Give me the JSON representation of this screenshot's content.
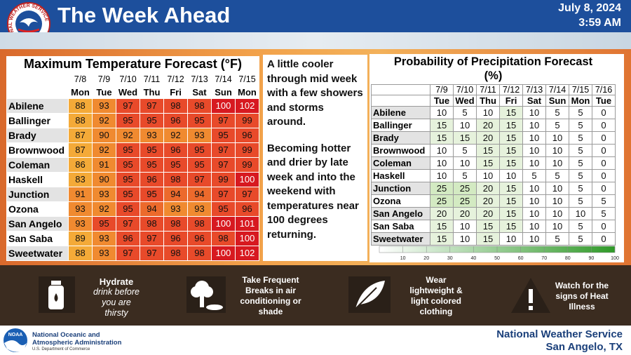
{
  "header": {
    "title": "The Week Ahead",
    "date": "July 8, 2024",
    "time": "3:59 AM",
    "logo_text": "NATIONAL WEATHER SERVICE"
  },
  "temperature": {
    "title": "Maximum Temperature Forecast (°F)",
    "dates": [
      "7/8",
      "7/9",
      "7/10",
      "7/11",
      "7/12",
      "7/13",
      "7/14",
      "7/15"
    ],
    "days": [
      "Mon",
      "Tue",
      "Wed",
      "Thu",
      "Fri",
      "Sat",
      "Sun",
      "Mon"
    ],
    "rows": [
      {
        "city": "Abilene",
        "values": [
          88,
          93,
          97,
          97,
          98,
          98,
          100,
          102
        ]
      },
      {
        "city": "Ballinger",
        "values": [
          88,
          92,
          95,
          95,
          96,
          95,
          97,
          99
        ]
      },
      {
        "city": "Brady",
        "values": [
          87,
          90,
          92,
          93,
          92,
          93,
          95,
          96
        ]
      },
      {
        "city": "Brownwood",
        "values": [
          87,
          92,
          95,
          95,
          96,
          95,
          97,
          99
        ]
      },
      {
        "city": "Coleman",
        "values": [
          86,
          91,
          95,
          95,
          95,
          95,
          97,
          99
        ]
      },
      {
        "city": "Haskell",
        "values": [
          83,
          90,
          95,
          96,
          98,
          97,
          99,
          100
        ]
      },
      {
        "city": "Junction",
        "values": [
          91,
          93,
          95,
          95,
          94,
          94,
          97,
          97
        ]
      },
      {
        "city": "Ozona",
        "values": [
          93,
          92,
          95,
          94,
          93,
          93,
          95,
          96
        ]
      },
      {
        "city": "San Angelo",
        "values": [
          93,
          95,
          97,
          98,
          98,
          98,
          100,
          101
        ]
      },
      {
        "city": "San Saba",
        "values": [
          89,
          93,
          96,
          97,
          96,
          96,
          98,
          100
        ]
      },
      {
        "city": "Sweetwater",
        "values": [
          88,
          93,
          97,
          97,
          98,
          98,
          100,
          102
        ]
      }
    ]
  },
  "summary": {
    "paragraphs": [
      "A little cooler through mid week with a few showers and storms around.",
      "Becoming hotter and drier by late week and into the weekend with temperatures near 100 degrees returning."
    ]
  },
  "precipitation": {
    "title": "Probability of Precipitation Forecast",
    "unit": "(%)",
    "dates": [
      "7/9",
      "7/10",
      "7/11",
      "7/12",
      "7/13",
      "7/14",
      "7/15",
      "7/16"
    ],
    "days": [
      "Tue",
      "Wed",
      "Thu",
      "Fri",
      "Sat",
      "Sun",
      "Mon",
      "Tue"
    ],
    "rows": [
      {
        "city": "Abilene",
        "values": [
          10,
          5,
          10,
          15,
          10,
          5,
          5,
          0
        ]
      },
      {
        "city": "Ballinger",
        "values": [
          15,
          10,
          20,
          15,
          10,
          5,
          5,
          0
        ]
      },
      {
        "city": "Brady",
        "values": [
          15,
          15,
          20,
          15,
          10,
          10,
          5,
          0
        ]
      },
      {
        "city": "Brownwood",
        "values": [
          10,
          5,
          15,
          15,
          10,
          10,
          5,
          0
        ]
      },
      {
        "city": "Coleman",
        "values": [
          10,
          10,
          15,
          15,
          10,
          10,
          5,
          0
        ]
      },
      {
        "city": "Haskell",
        "values": [
          10,
          5,
          10,
          10,
          5,
          5,
          5,
          0
        ]
      },
      {
        "city": "Junction",
        "values": [
          25,
          25,
          20,
          15,
          10,
          10,
          5,
          0
        ]
      },
      {
        "city": "Ozona",
        "values": [
          25,
          25,
          20,
          15,
          10,
          10,
          5,
          5
        ]
      },
      {
        "city": "San Angelo",
        "values": [
          20,
          20,
          20,
          15,
          10,
          10,
          10,
          5
        ]
      },
      {
        "city": "San Saba",
        "values": [
          15,
          10,
          15,
          15,
          10,
          10,
          5,
          0
        ]
      },
      {
        "city": "Sweetwater",
        "values": [
          15,
          10,
          15,
          10,
          10,
          5,
          5,
          0
        ]
      }
    ],
    "colorbar_lim": [
      0,
      100
    ],
    "colorbar_ticks": [
      10,
      20,
      30,
      40,
      50,
      60,
      70,
      80,
      90,
      100
    ]
  },
  "tips": [
    {
      "title": "Hydrate",
      "text": "drink before you are thirsty"
    },
    {
      "text": "Take Frequent Breaks in air conditioning or shade"
    },
    {
      "text": "Wear lightweight & light colored clothing"
    },
    {
      "text": "Watch for the signs of Heat Illness"
    }
  ],
  "footer": {
    "logo_text": "NOAA",
    "agency": "National Oceanic and Atmospheric Administration",
    "department": "U.S. Department of Commerce",
    "office": "National Weather Service",
    "location": "San Angelo, TX"
  }
}
